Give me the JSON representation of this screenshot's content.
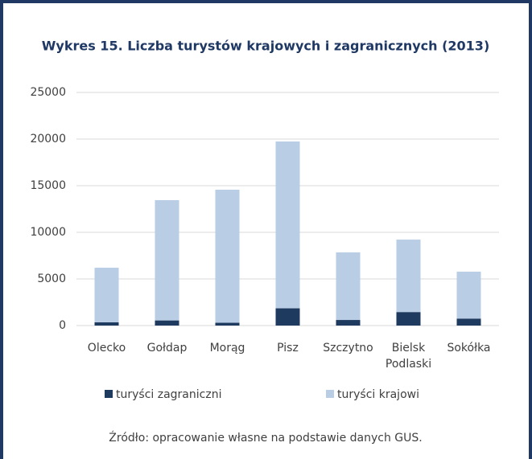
{
  "chart_data": {
    "type": "stacked_bar",
    "title": "Wykres 15. Liczba turystów krajowych i zagranicznych (2013)",
    "source": "Źródło: opracowanie własne na podstawie danych GUS.",
    "categories": [
      "Olecko",
      "Gołdap",
      "Morąg",
      "Pisz",
      "Szczytno",
      "Bielsk Podlaski",
      "Sokółka"
    ],
    "series": [
      {
        "name": "turyści zagraniczni",
        "color": "#1f3a5f",
        "values": [
          350,
          550,
          300,
          1850,
          600,
          1450,
          750
        ]
      },
      {
        "name": "turyści krajowi",
        "color": "#b9cde5",
        "values": [
          5850,
          12900,
          14270,
          17890,
          7250,
          7770,
          5030
        ]
      }
    ],
    "ylim": [
      0,
      25000
    ],
    "yticks": [
      0,
      5000,
      10000,
      15000,
      20000,
      25000
    ],
    "grid": true,
    "legend": "bottom"
  }
}
